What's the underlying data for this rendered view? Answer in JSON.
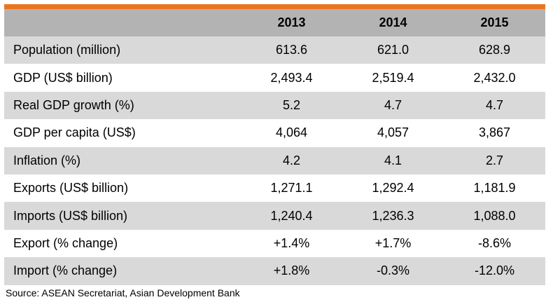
{
  "colors": {
    "accent_bar": "#e8761e",
    "header_bg": "#b3b3b3",
    "row_shaded": "#d9d9d9",
    "row_plain": "#ffffff"
  },
  "table": {
    "headers": [
      "",
      "2013",
      "2014",
      "2015"
    ],
    "rows": [
      {
        "label": "Population (million)",
        "values": [
          "613.6",
          "621.0",
          "628.9"
        ]
      },
      {
        "label": "GDP (US$ billion)",
        "values": [
          "2,493.4",
          "2,519.4",
          "2,432.0"
        ]
      },
      {
        "label": "Real GDP growth (%)",
        "values": [
          "5.2",
          "4.7",
          "4.7"
        ]
      },
      {
        "label": "GDP per capita (US$)",
        "values": [
          "4,064",
          "4,057",
          "3,867"
        ]
      },
      {
        "label": "Inflation (%)",
        "values": [
          "4.2",
          "4.1",
          "2.7"
        ]
      },
      {
        "label": "Exports (US$ billion)",
        "values": [
          "1,271.1",
          "1,292.4",
          "1,181.9"
        ]
      },
      {
        "label": "Imports (US$ billion)",
        "values": [
          "1,240.4",
          "1,236.3",
          "1,088.0"
        ]
      },
      {
        "label": "Export (% change)",
        "values": [
          "+1.4%",
          "+1.7%",
          "-8.6%"
        ]
      },
      {
        "label": "Import (% change)",
        "values": [
          "+1.8%",
          "-0.3%",
          "-12.0%"
        ]
      }
    ]
  },
  "source": "Source: ASEAN Secretariat, Asian Development Bank"
}
